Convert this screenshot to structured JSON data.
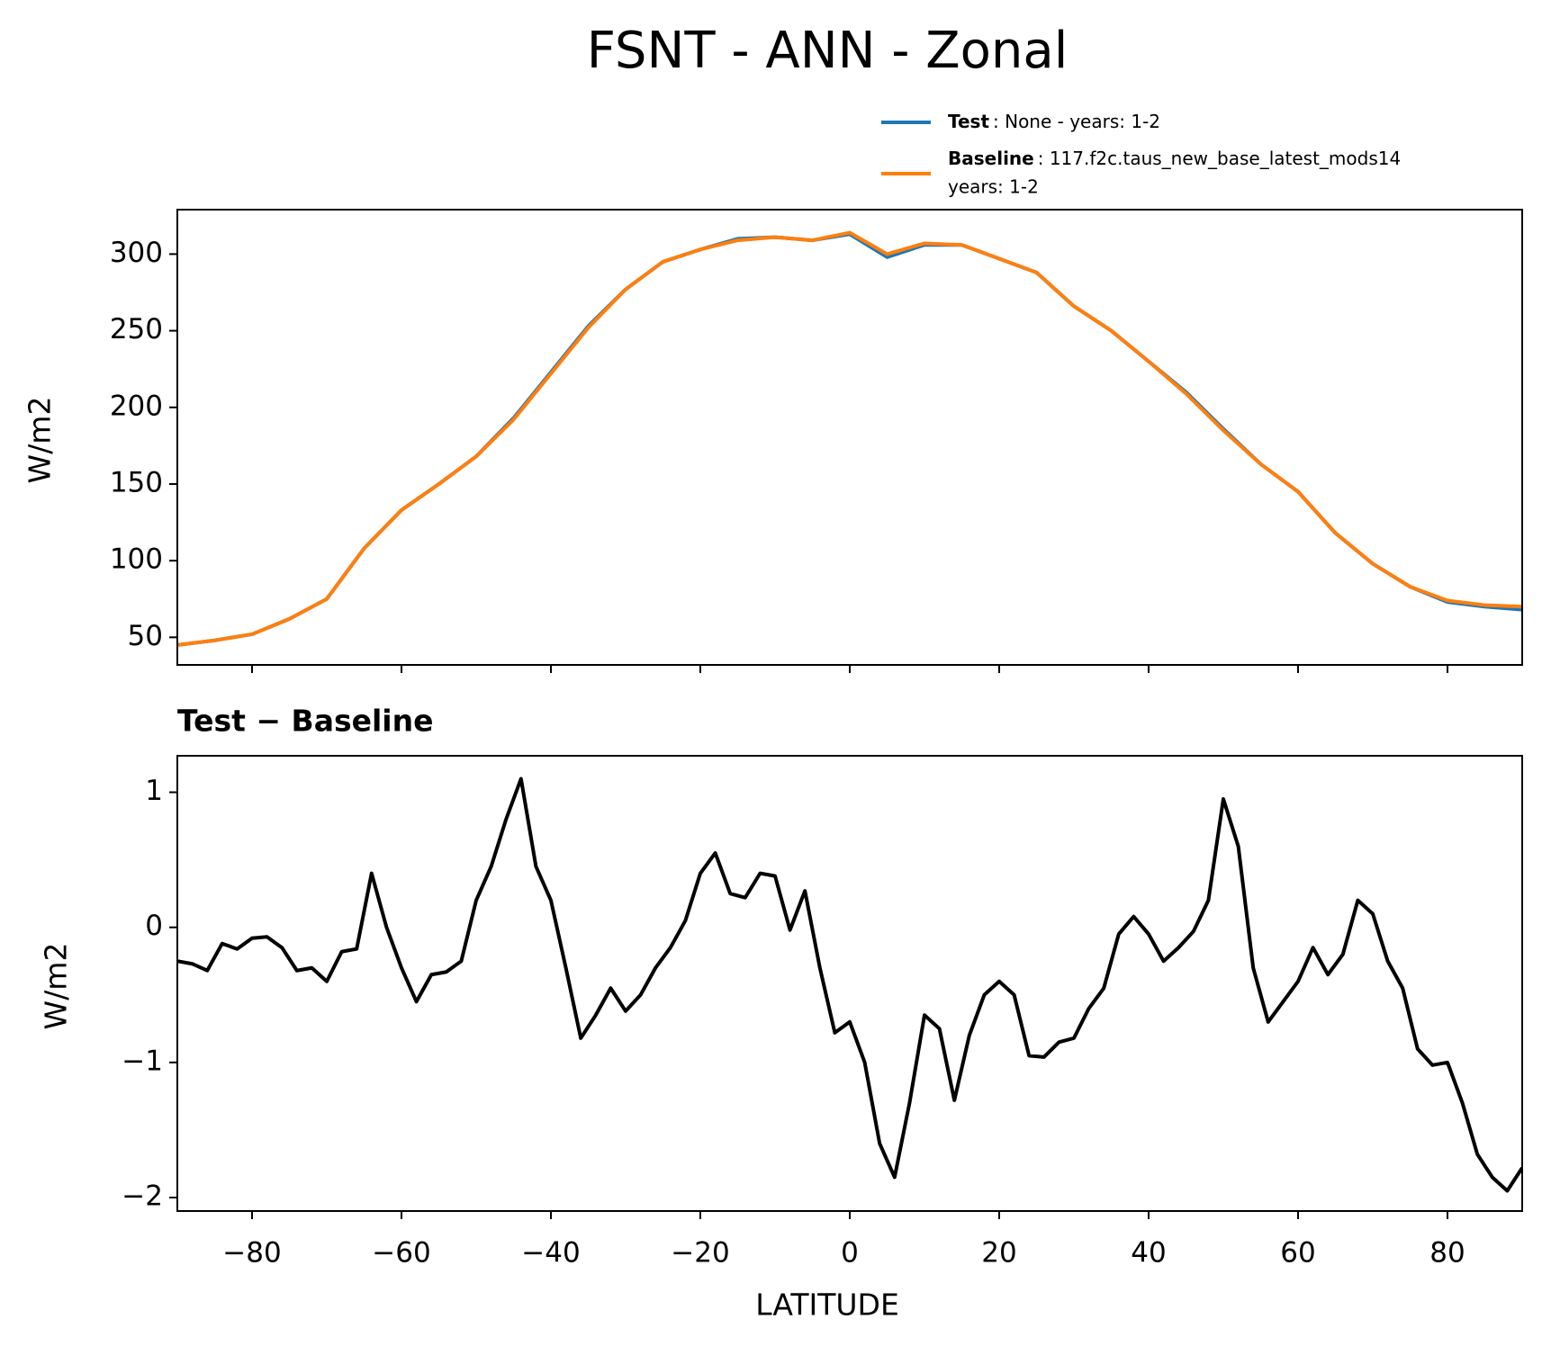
{
  "chart_data": [
    {
      "type": "line",
      "title": "FSNT - ANN - Zonal",
      "ylabel": "W/m2",
      "x": [
        -90,
        -85,
        -80,
        -75,
        -70,
        -65,
        -60,
        -55,
        -50,
        -45,
        -40,
        -35,
        -30,
        -25,
        -20,
        -15,
        -10,
        -5,
        0,
        5,
        10,
        15,
        20,
        25,
        30,
        35,
        40,
        45,
        50,
        55,
        60,
        65,
        70,
        75,
        80,
        85,
        90
      ],
      "series": [
        {
          "name": "Test",
          "description": [
            ": None - years: 1-2"
          ],
          "color": "#1f77b4",
          "values": [
            45,
            48,
            52,
            62,
            75,
            108,
            133,
            150,
            168,
            193,
            223,
            253,
            277,
            295,
            303,
            310,
            311,
            309,
            313,
            298,
            306,
            306,
            297,
            288,
            266,
            250,
            230,
            210,
            186,
            163,
            145,
            118,
            98,
            83,
            73,
            70,
            68
          ]
        },
        {
          "name": "Baseline",
          "description": [
            ": 117.f2c.taus_new_base_latest_mods14",
            "years: 1-2"
          ],
          "color": "#ff7f0e",
          "values": [
            45,
            48,
            52,
            62,
            75,
            108,
            133,
            150,
            168,
            192,
            222,
            252,
            277,
            295,
            303,
            309,
            311,
            309,
            314,
            300,
            307,
            306,
            297,
            288,
            266,
            250,
            230,
            209,
            185,
            163,
            145,
            118,
            98,
            83,
            74,
            71,
            70
          ]
        }
      ],
      "xlim": [
        -90,
        90
      ],
      "xticks": [
        -80,
        -60,
        -40,
        -20,
        0,
        20,
        40,
        60,
        80
      ],
      "ylim": [
        32,
        329
      ],
      "yticks": [
        50,
        100,
        150,
        200,
        250,
        300
      ]
    },
    {
      "type": "line",
      "title": "Test − Baseline",
      "xlabel": "LATITUDE",
      "ylabel": "W/m2",
      "x": [
        -90,
        -88,
        -86,
        -84,
        -82,
        -80,
        -78,
        -76,
        -74,
        -72,
        -70,
        -68,
        -66,
        -64,
        -62,
        -60,
        -58,
        -56,
        -54,
        -52,
        -50,
        -48,
        -46,
        -44,
        -42,
        -40,
        -38,
        -36,
        -34,
        -32,
        -30,
        -28,
        -26,
        -24,
        -22,
        -20,
        -18,
        -16,
        -14,
        -12,
        -10,
        -8,
        -6,
        -4,
        -2,
        0,
        2,
        4,
        6,
        8,
        10,
        12,
        14,
        16,
        18,
        20,
        22,
        24,
        26,
        28,
        30,
        32,
        34,
        36,
        38,
        40,
        42,
        44,
        46,
        48,
        50,
        52,
        54,
        56,
        58,
        60,
        62,
        64,
        66,
        68,
        70,
        72,
        74,
        76,
        78,
        80,
        82,
        84,
        86,
        88,
        90
      ],
      "series": [
        {
          "name": "Test − Baseline",
          "color": "#000000",
          "values": [
            -0.25,
            -0.27,
            -0.32,
            -0.12,
            -0.16,
            -0.08,
            -0.07,
            -0.15,
            -0.32,
            -0.3,
            -0.4,
            -0.18,
            -0.16,
            0.4,
            0.0,
            -0.3,
            -0.55,
            -0.35,
            -0.33,
            -0.25,
            0.2,
            0.45,
            0.8,
            1.1,
            0.45,
            0.2,
            -0.3,
            -0.82,
            -0.65,
            -0.45,
            -0.62,
            -0.5,
            -0.3,
            -0.15,
            0.05,
            0.4,
            0.55,
            0.25,
            0.22,
            0.4,
            0.38,
            -0.02,
            0.27,
            -0.3,
            -0.78,
            -0.7,
            -1.0,
            -1.6,
            -1.85,
            -1.3,
            -0.65,
            -0.75,
            -1.28,
            -0.8,
            -0.5,
            -0.4,
            -0.5,
            -0.95,
            -0.96,
            -0.85,
            -0.82,
            -0.6,
            -0.45,
            -0.05,
            0.08,
            -0.05,
            -0.25,
            -0.15,
            -0.03,
            0.2,
            0.95,
            0.6,
            -0.3,
            -0.7,
            -0.55,
            -0.4,
            -0.15,
            -0.35,
            -0.2,
            0.2,
            0.1,
            -0.25,
            -0.45,
            -0.9,
            -1.02,
            -1.0,
            -1.3,
            -1.68,
            -1.85,
            -1.95,
            -1.78
          ]
        }
      ],
      "xlim": [
        -90,
        90
      ],
      "xticks": [
        {
          "value": -80,
          "label": "−80"
        },
        {
          "value": -60,
          "label": "−60"
        },
        {
          "value": -40,
          "label": "−40"
        },
        {
          "value": -20,
          "label": "−20"
        },
        0,
        20,
        40,
        60,
        80
      ],
      "ylim": [
        -2.1,
        1.27
      ],
      "yticks": [
        {
          "value": -2,
          "label": "−2"
        },
        {
          "value": -1,
          "label": "−1"
        },
        0,
        1
      ]
    }
  ]
}
